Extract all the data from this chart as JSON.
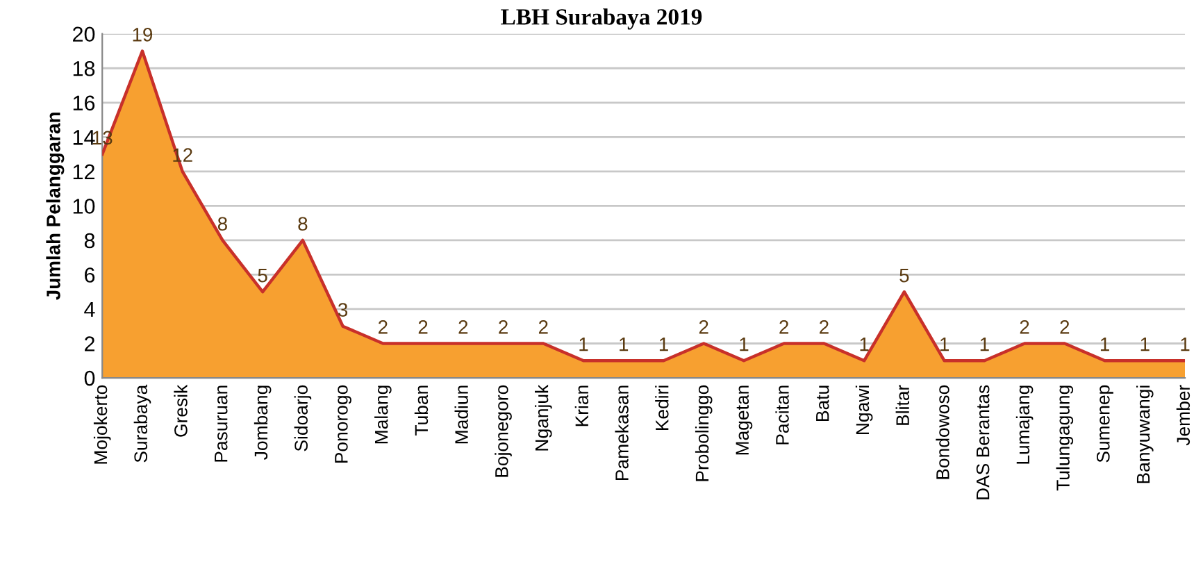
{
  "chart_data": {
    "type": "area",
    "title": "LBH Surabaya 2019",
    "ylabel": "Jumlah Pelanggaran",
    "categories": [
      "Mojokerto",
      "Surabaya",
      "Gresik",
      "Pasuruan",
      "Jombang",
      "Sidoarjo",
      "Ponorogo",
      "Malang",
      "Tuban",
      "Madiun",
      "Bojonegoro",
      "Nganjuk",
      "Krian",
      "Pamekasan",
      "Kediri",
      "Probolinggo",
      "Magetan",
      "Pacitan",
      "Batu",
      "Ngawi",
      "Blitar",
      "Bondowoso",
      "DAS Berantas",
      "Lumajang",
      "Tulungagung",
      "Sumenep",
      "Banyuwangi",
      "Jember"
    ],
    "series": [
      {
        "color": "#f7a030",
        "values": [
          13,
          19,
          12,
          8,
          5,
          8,
          3,
          2,
          2,
          2,
          2,
          2,
          1,
          1,
          1,
          2,
          1,
          2,
          2,
          1,
          5,
          1,
          1,
          2,
          2,
          1,
          1,
          1
        ]
      }
    ],
    "ylim": [
      0,
      20
    ],
    "yticks": [
      0,
      2,
      4,
      6,
      8,
      10,
      12,
      14,
      16,
      18,
      20
    ],
    "grid": "y",
    "data_labels": true
  }
}
